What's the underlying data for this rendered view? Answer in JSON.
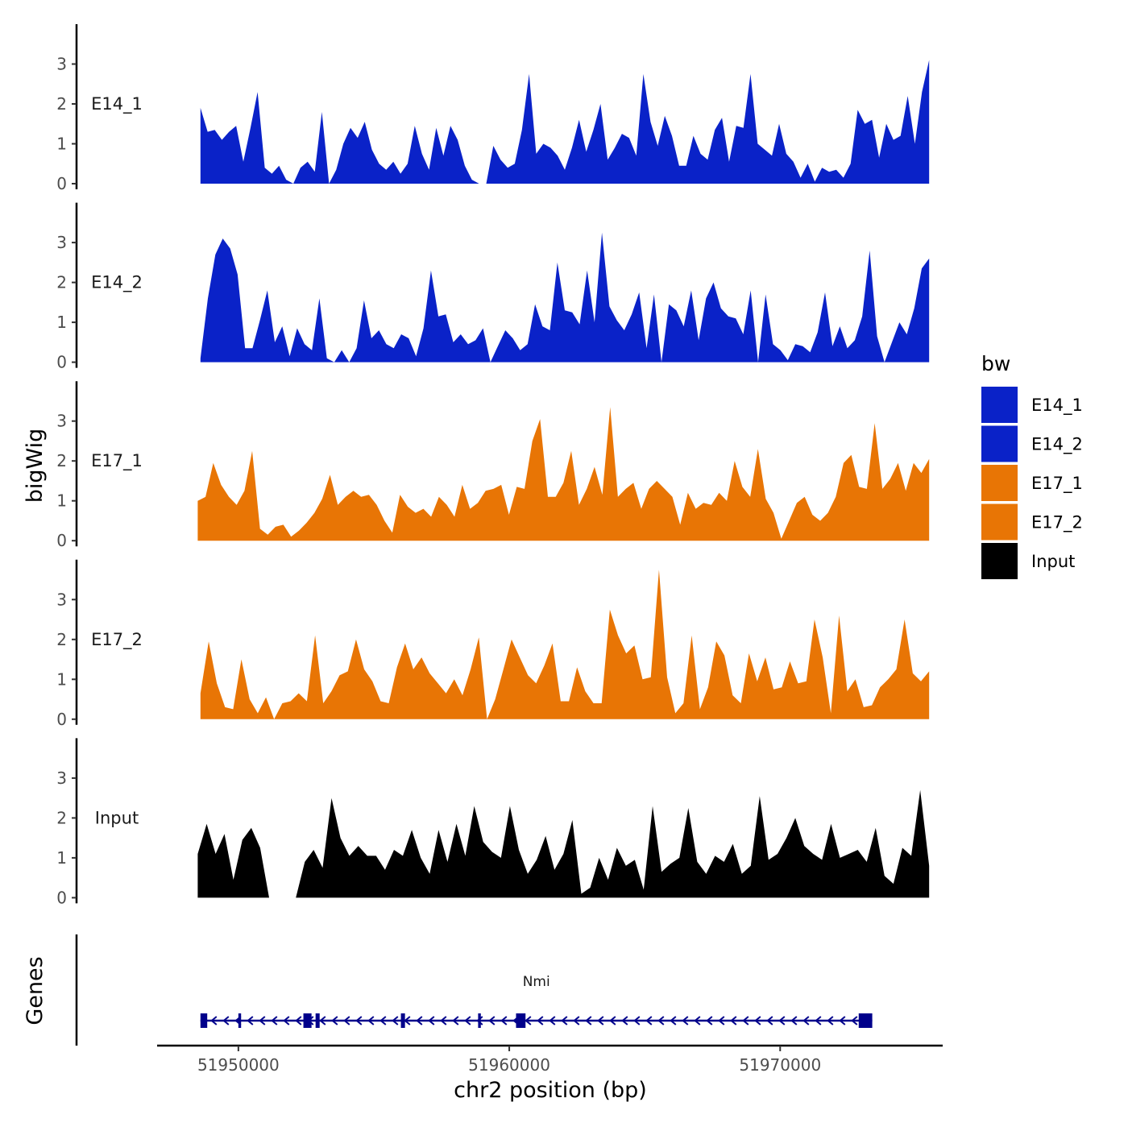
{
  "chart_data": {
    "type": "area",
    "title": "",
    "ylabel": "bigWig",
    "xlabel": "chr2 position (bp)",
    "chromosome": "chr2",
    "x_range": [
      51947000,
      51976000
    ],
    "data_range": [
      51948600,
      51975500
    ],
    "ylim": [
      0,
      4
    ],
    "y_ticks": [
      0,
      1,
      2,
      3
    ],
    "x_ticks": [
      51950000,
      51960000,
      51970000
    ],
    "x_tick_labels": [
      "51950000",
      "51960000",
      "51970000"
    ],
    "legend": {
      "title": "bw",
      "position": "right",
      "entries": [
        {
          "name": "E14_1",
          "color": "#0a22c8"
        },
        {
          "name": "E14_2",
          "color": "#0a22c8"
        },
        {
          "name": "E17_1",
          "color": "#e87505"
        },
        {
          "name": "E17_2",
          "color": "#e87505"
        },
        {
          "name": "Input",
          "color": "#000000"
        }
      ]
    },
    "series": [
      {
        "name": "E14_1",
        "label": "E14_1",
        "color": "#0a22c8",
        "x_start": 51948600,
        "x_end": 51975500,
        "values": [
          1.9,
          1.3,
          1.35,
          1.1,
          1.3,
          1.45,
          0.55,
          1.4,
          2.3,
          0.4,
          0.25,
          0.45,
          0.1,
          0.0,
          0.4,
          0.55,
          0.3,
          1.8,
          0.0,
          0.35,
          1.0,
          1.4,
          1.15,
          1.55,
          0.85,
          0.5,
          0.35,
          0.55,
          0.25,
          0.5,
          1.45,
          0.75,
          0.35,
          1.4,
          0.7,
          1.45,
          1.1,
          0.45,
          0.1,
          0.0,
          0.0,
          0.95,
          0.6,
          0.4,
          0.5,
          1.35,
          2.75,
          0.75,
          1.0,
          0.9,
          0.7,
          0.35,
          0.9,
          1.6,
          0.8,
          1.35,
          2.0,
          0.6,
          0.9,
          1.25,
          1.15,
          0.7,
          2.75,
          1.55,
          0.95,
          1.7,
          1.2,
          0.45,
          0.45,
          1.2,
          0.75,
          0.6,
          1.35,
          1.65,
          0.55,
          1.45,
          1.4,
          2.75,
          1.0,
          0.85,
          0.7,
          1.5,
          0.75,
          0.55,
          0.15,
          0.5,
          0.05,
          0.4,
          0.3,
          0.35,
          0.15,
          0.5,
          1.85,
          1.5,
          1.6,
          0.65,
          1.5,
          1.1,
          1.2,
          2.2,
          1.0,
          2.3,
          3.1
        ]
      },
      {
        "name": "E14_2",
        "label": "E14_2",
        "color": "#0a22c8",
        "x_start": 51948600,
        "x_end": 51975500,
        "values": [
          0.1,
          1.6,
          2.7,
          3.1,
          2.85,
          2.2,
          0.35,
          0.35,
          1.05,
          1.8,
          0.5,
          0.9,
          0.15,
          0.85,
          0.45,
          0.3,
          1.6,
          0.1,
          0.0,
          0.3,
          0.0,
          0.35,
          1.55,
          0.6,
          0.8,
          0.45,
          0.35,
          0.7,
          0.6,
          0.15,
          0.85,
          2.3,
          1.15,
          1.2,
          0.5,
          0.7,
          0.45,
          0.55,
          0.85,
          0.0,
          0.4,
          0.8,
          0.6,
          0.3,
          0.45,
          1.45,
          0.9,
          0.8,
          2.5,
          1.3,
          1.25,
          0.95,
          2.3,
          1.0,
          3.25,
          1.4,
          1.05,
          0.8,
          1.2,
          1.75,
          0.35,
          1.7,
          0.0,
          1.45,
          1.3,
          0.9,
          1.8,
          0.55,
          1.6,
          2.0,
          1.35,
          1.15,
          1.1,
          0.7,
          1.8,
          0.0,
          1.7,
          0.45,
          0.3,
          0.05,
          0.45,
          0.4,
          0.25,
          0.75,
          1.75,
          0.4,
          0.9,
          0.35,
          0.55,
          1.15,
          2.8,
          0.65,
          0.0,
          0.5,
          1.0,
          0.7,
          1.35,
          2.35,
          2.6
        ]
      },
      {
        "name": "E17_1",
        "label": "E17_1",
        "color": "#e87505",
        "x_start": 51948500,
        "x_end": 51975500,
        "values": [
          1.0,
          1.1,
          1.95,
          1.4,
          1.1,
          0.9,
          1.25,
          2.25,
          0.3,
          0.15,
          0.35,
          0.4,
          0.1,
          0.25,
          0.45,
          0.7,
          1.05,
          1.65,
          0.9,
          1.1,
          1.25,
          1.1,
          1.15,
          0.9,
          0.5,
          0.2,
          1.15,
          0.85,
          0.7,
          0.8,
          0.6,
          1.1,
          0.9,
          0.6,
          1.4,
          0.8,
          0.95,
          1.25,
          1.3,
          1.4,
          0.65,
          1.35,
          1.3,
          2.5,
          3.05,
          1.1,
          1.1,
          1.45,
          2.25,
          0.9,
          1.3,
          1.85,
          1.15,
          3.35,
          1.1,
          1.3,
          1.45,
          0.8,
          1.3,
          1.5,
          1.3,
          1.1,
          0.4,
          1.2,
          0.8,
          0.95,
          0.9,
          1.2,
          1.0,
          2.0,
          1.35,
          1.1,
          2.3,
          1.05,
          0.7,
          0.05,
          0.5,
          0.95,
          1.1,
          0.65,
          0.5,
          0.7,
          1.1,
          1.95,
          2.15,
          1.35,
          1.3,
          2.95,
          1.3,
          1.55,
          1.95,
          1.25,
          1.95,
          1.7,
          2.05
        ]
      },
      {
        "name": "E17_2",
        "label": "E17_2",
        "color": "#e87505",
        "x_start": 51948600,
        "x_end": 51975500,
        "values": [
          0.65,
          1.95,
          0.9,
          0.3,
          0.25,
          1.5,
          0.5,
          0.15,
          0.55,
          0.0,
          0.4,
          0.45,
          0.65,
          0.45,
          2.1,
          0.4,
          0.7,
          1.1,
          1.2,
          2.0,
          1.25,
          0.95,
          0.45,
          0.4,
          1.3,
          1.9,
          1.25,
          1.55,
          1.15,
          0.9,
          0.65,
          1.0,
          0.6,
          1.25,
          2.05,
          0.0,
          0.5,
          1.25,
          2.0,
          1.55,
          1.1,
          0.9,
          1.35,
          1.9,
          0.45,
          0.45,
          1.3,
          0.7,
          0.4,
          0.4,
          2.75,
          2.1,
          1.65,
          1.85,
          1.0,
          1.05,
          3.75,
          1.05,
          0.15,
          0.4,
          2.1,
          0.25,
          0.8,
          1.95,
          1.6,
          0.6,
          0.4,
          1.65,
          0.95,
          1.55,
          0.75,
          0.8,
          1.45,
          0.9,
          0.95,
          2.5,
          1.55,
          0.15,
          2.6,
          0.7,
          1.0,
          0.3,
          0.35,
          0.8,
          1.0,
          1.25,
          2.5,
          1.15,
          0.95,
          1.2
        ]
      },
      {
        "name": "Input",
        "label": "Input",
        "color": "#000000",
        "x_start": 51948500,
        "x_end": 51975500,
        "values": [
          1.1,
          1.85,
          1.1,
          1.6,
          0.45,
          1.45,
          1.75,
          1.25,
          0.0,
          0.0,
          0.0,
          0.0,
          0.9,
          1.2,
          0.75,
          2.5,
          1.5,
          1.05,
          1.3,
          1.05,
          1.05,
          0.7,
          1.2,
          1.05,
          1.7,
          1.0,
          0.6,
          1.7,
          0.9,
          1.85,
          1.05,
          2.3,
          1.4,
          1.15,
          1.0,
          2.3,
          1.2,
          0.6,
          0.95,
          1.55,
          0.7,
          1.1,
          1.95,
          0.1,
          0.25,
          1.0,
          0.45,
          1.25,
          0.8,
          0.95,
          0.2,
          2.3,
          0.65,
          0.85,
          1.0,
          2.25,
          0.9,
          0.6,
          1.05,
          0.9,
          1.35,
          0.6,
          0.8,
          2.55,
          0.95,
          1.1,
          1.5,
          2.0,
          1.3,
          1.1,
          0.95,
          1.85,
          1.0,
          1.1,
          1.2,
          0.9,
          1.75,
          0.55,
          0.35,
          1.25,
          1.05,
          2.7,
          0.8
        ]
      }
    ],
    "genes_track": {
      "label": "Genes",
      "gene_name": "Nmi",
      "color": "#00008b",
      "strand": "-",
      "start": 51948600,
      "end": 51973400,
      "exons": [
        [
          51948600,
          51948850
        ],
        [
          51950000,
          51950100
        ],
        [
          51952400,
          51952700
        ],
        [
          51952850,
          51953000
        ],
        [
          51956000,
          51956150
        ],
        [
          51958850,
          51958950
        ],
        [
          51960250,
          51960600
        ],
        [
          51972900,
          51973400
        ]
      ]
    }
  }
}
